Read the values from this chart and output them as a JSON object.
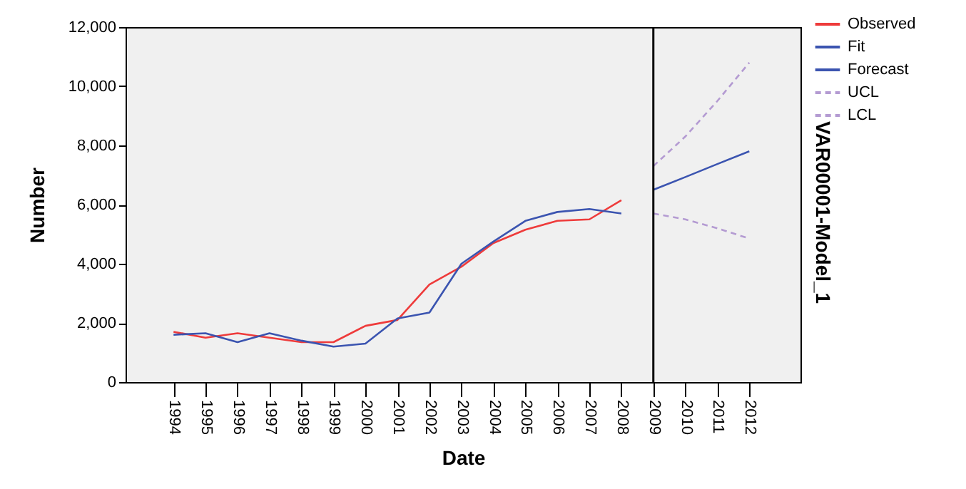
{
  "chart_data": {
    "type": "line",
    "xlabel": "Date",
    "ylabel": "Number",
    "xlim": [
      1992.5,
      2013.6
    ],
    "xticks": [
      1994,
      1995,
      1996,
      1997,
      1998,
      1999,
      2000,
      2001,
      2002,
      2003,
      2004,
      2005,
      2006,
      2007,
      2008,
      2009,
      2010,
      2011,
      2012
    ],
    "ylim": [
      0,
      12000
    ],
    "yticks": [
      {
        "value": 0,
        "label": "0"
      },
      {
        "value": 2000,
        "label": "2,000"
      },
      {
        "value": 4000,
        "label": "4,000"
      },
      {
        "value": 6000,
        "label": "6,000"
      },
      {
        "value": 8000,
        "label": "8,000"
      },
      {
        "value": 10000,
        "label": "10,000"
      },
      {
        "value": 12000,
        "label": "12,000"
      }
    ],
    "grid": false,
    "legend": "top right",
    "series": [
      {
        "name": "Observed",
        "color": "#ee3b3b",
        "line_style": "solid",
        "x": [
          1994,
          1995,
          1996,
          1997,
          1998,
          1999,
          2000,
          2001,
          2002,
          2003,
          2004,
          2005,
          2006,
          2007,
          2008
        ],
        "values": [
          1700,
          1500,
          1650,
          1500,
          1350,
          1350,
          1900,
          2100,
          3300,
          3900,
          4700,
          5150,
          5450,
          5500,
          6150
        ]
      },
      {
        "name": "Fit",
        "color": "#3b54b0",
        "line_style": "solid",
        "x": [
          1994,
          1995,
          1996,
          1997,
          1998,
          1999,
          2000,
          2001,
          2002,
          2003,
          2004,
          2005,
          2006,
          2007,
          2008
        ],
        "values": [
          1600,
          1650,
          1350,
          1650,
          1400,
          1200,
          1300,
          2150,
          2350,
          4000,
          4750,
          5450,
          5750,
          5850,
          5700
        ]
      },
      {
        "name": "Forecast",
        "color": "#3b54b0",
        "line_style": "solid",
        "x": [
          2009,
          2010,
          2011,
          2012
        ],
        "values": [
          6500,
          6930,
          7370,
          7800
        ]
      },
      {
        "name": "UCL",
        "color": "#b49bd2",
        "line_style": "dashed",
        "x": [
          2009,
          2010,
          2011,
          2012
        ],
        "values": [
          7300,
          8300,
          9500,
          10800
        ]
      },
      {
        "name": "LCL",
        "color": "#b49bd2",
        "line_style": "dashed",
        "x": [
          2009,
          2010,
          2011,
          2012
        ],
        "values": [
          5700,
          5500,
          5200,
          4850
        ]
      }
    ],
    "ref_lines": [
      {
        "axis": "x",
        "value": 2009,
        "color": "#000000"
      }
    ],
    "annotations": [
      "VAR00001-Model_1"
    ]
  }
}
